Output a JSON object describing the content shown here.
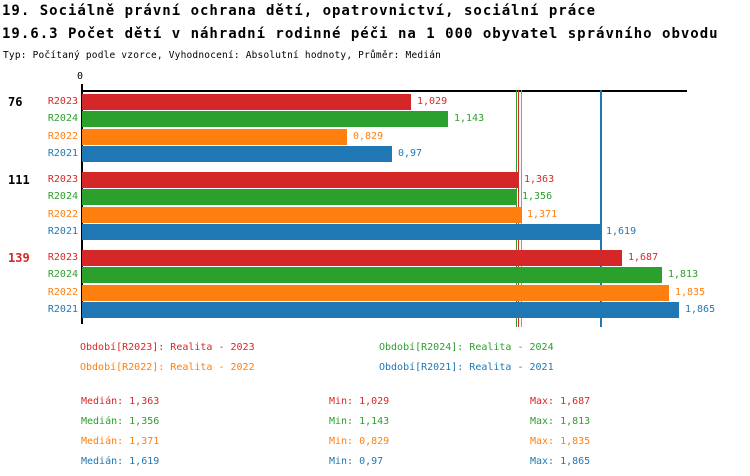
{
  "header": {
    "title_line1": "19. Sociálně právní ochrana dětí, opatrovnictví, sociální práce",
    "title_line2": "19.6.3 Počet dětí v náhradní rodinné péči na 1 000 obyvatel správního obvodu",
    "meta_line": "Typ: Počítaný podle vzorce, Vyhodnocení: Absolutní hodnoty, Průměr: Medián"
  },
  "colors": {
    "r2023": "#d62728",
    "r2024": "#2ca02c",
    "r2022": "#ff7f0e",
    "r2021": "#1f77b4",
    "axis": "#000000",
    "group_label_default": "#000000",
    "group_label_highlight": "#d62728"
  },
  "chart_data": {
    "type": "bar",
    "orientation": "horizontal",
    "title": "19.6.3 Počet dětí v náhradní rodinné péči na 1 000 obyvatel správního obvodu",
    "xlabel": "",
    "ylabel": "",
    "xlim": [
      0,
      1.9
    ],
    "x_axis_zero_label": "0",
    "grid": false,
    "legend_position": "bottom",
    "series_order": [
      "R2023",
      "R2024",
      "R2022",
      "R2021"
    ],
    "series_colors": {
      "R2023": "#d62728",
      "R2024": "#2ca02c",
      "R2022": "#ff7f0e",
      "R2021": "#1f77b4"
    },
    "groups": [
      {
        "label": "76",
        "label_color": "#000000",
        "bars": [
          {
            "series": "R2023",
            "value": 1.029,
            "value_label": "1,029"
          },
          {
            "series": "R2024",
            "value": 1.143,
            "value_label": "1,143"
          },
          {
            "series": "R2022",
            "value": 0.829,
            "value_label": "0,829"
          },
          {
            "series": "R2021",
            "value": 0.97,
            "value_label": "0,97"
          }
        ]
      },
      {
        "label": "111",
        "label_color": "#000000",
        "bars": [
          {
            "series": "R2023",
            "value": 1.363,
            "value_label": "1,363"
          },
          {
            "series": "R2024",
            "value": 1.356,
            "value_label": "1,356"
          },
          {
            "series": "R2022",
            "value": 1.371,
            "value_label": "1,371"
          },
          {
            "series": "R2021",
            "value": 1.619,
            "value_label": "1,619"
          }
        ]
      },
      {
        "label": "139",
        "label_color": "#d62728",
        "bars": [
          {
            "series": "R2023",
            "value": 1.687,
            "value_label": "1,687"
          },
          {
            "series": "R2024",
            "value": 1.813,
            "value_label": "1,813"
          },
          {
            "series": "R2022",
            "value": 1.835,
            "value_label": "1,835"
          },
          {
            "series": "R2021",
            "value": 1.865,
            "value_label": "1,865"
          }
        ]
      }
    ],
    "median_lines": [
      {
        "series": "R2024",
        "value": 1.356,
        "color": "#2ca02c"
      },
      {
        "series": "R2023",
        "value": 1.363,
        "color": "#d62728"
      },
      {
        "series": "R2022",
        "value": 1.371,
        "color": "#ff7f0e"
      },
      {
        "series": "R2021",
        "value": 1.619,
        "color": "#1f77b4"
      }
    ]
  },
  "legend": {
    "items": [
      {
        "label": "Období[R2023]: Realita - 2023",
        "color": "#d62728"
      },
      {
        "label": "Období[R2024]: Realita - 2024",
        "color": "#2ca02c"
      },
      {
        "label": "Období[R2022]: Realita - 2022",
        "color": "#ff7f0e"
      },
      {
        "label": "Období[R2021]: Realita - 2021",
        "color": "#1f77b4"
      }
    ]
  },
  "stats": {
    "rows": [
      {
        "color": "#d62728",
        "median": "Medián: 1,363",
        "min": "Min: 1,029",
        "max": "Max: 1,687"
      },
      {
        "color": "#2ca02c",
        "median": "Medián: 1,356",
        "min": "Min: 1,143",
        "max": "Max: 1,813"
      },
      {
        "color": "#ff7f0e",
        "median": "Medián: 1,371",
        "min": "Min: 0,829",
        "max": "Max: 1,835"
      },
      {
        "color": "#1f77b4",
        "median": "Medián: 1,619",
        "min": "Min: 0,97",
        "max": "Max: 1,865"
      }
    ]
  }
}
